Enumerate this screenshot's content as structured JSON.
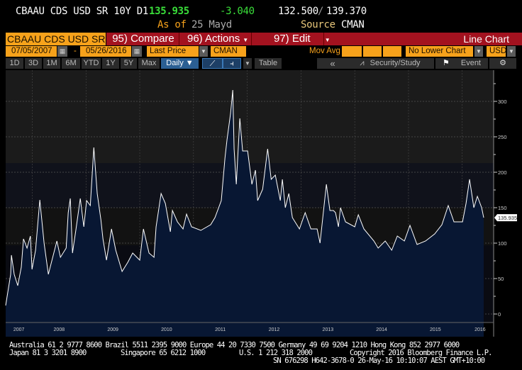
{
  "header": {
    "ticker": "CBAAU CDS USD SR 10Y D1",
    "last": "135.935",
    "change": "-3.040",
    "low": "132.500",
    "sep": "/",
    "high": "139.370",
    "asof_label": "As of",
    "asof_value": "25 Mayd",
    "source_label": "Source",
    "source_value": "CMAN"
  },
  "toolbar": {
    "security": "CBAAU CDS USD SR 1",
    "compare": "95) Compare",
    "actions": "96) Actions",
    "edit": "97) Edit",
    "chart_type": "Line Chart"
  },
  "fields": {
    "start_date": "07/05/2007",
    "dash": "-",
    "end_date": "05/26/2016",
    "field": "Last Price",
    "source": "CMAN",
    "mov_avg": "Mov Avg",
    "lower_chart": "No Lower Chart",
    "currency": "USD"
  },
  "ranges": [
    "1D",
    "3D",
    "1M",
    "6M",
    "YTD",
    "1Y",
    "5Y",
    "Max"
  ],
  "controls": {
    "period": "Daily ▼",
    "table": "Table",
    "back": "«",
    "security_study": "Security/Study",
    "event": "Event"
  },
  "colors": {
    "line": "#ffffff",
    "fill": "#12304f",
    "up_down": "#3adf3a",
    "accent": "#f7a21b",
    "bar": "#a3121f"
  },
  "chart_data": {
    "type": "area",
    "ylim": [
      0,
      330
    ],
    "yticks": [
      0,
      50,
      100,
      150,
      200,
      250,
      300
    ],
    "xlim": [
      "2007-07-05",
      "2016-05-26"
    ],
    "xtick_labels": [
      "2007",
      "2008",
      "2009",
      "2010",
      "2011",
      "2012",
      "2013",
      "2014",
      "2015",
      "2016"
    ],
    "last_value_label": "135.935",
    "grid": true,
    "points": [
      [
        "2007-07-05",
        12
      ],
      [
        "2007-08-08",
        56
      ],
      [
        "2007-08-13",
        83
      ],
      [
        "2007-09-01",
        56
      ],
      [
        "2007-09-25",
        40
      ],
      [
        "2007-10-19",
        66
      ],
      [
        "2007-11-03",
        106
      ],
      [
        "2007-11-27",
        93
      ],
      [
        "2007-12-20",
        110
      ],
      [
        "2007-12-31",
        63
      ],
      [
        "2008-01-24",
        90
      ],
      [
        "2008-02-22",
        161
      ],
      [
        "2008-03-22",
        100
      ],
      [
        "2008-04-20",
        56
      ],
      [
        "2008-06-17",
        103
      ],
      [
        "2008-07-11",
        80
      ],
      [
        "2008-08-19",
        93
      ],
      [
        "2008-09-02",
        143
      ],
      [
        "2008-09-16",
        163
      ],
      [
        "2008-10-01",
        86
      ],
      [
        "2008-10-25",
        120
      ],
      [
        "2008-11-23",
        163
      ],
      [
        "2008-12-17",
        123
      ],
      [
        "2009-01-05",
        160
      ],
      [
        "2009-01-30",
        153
      ],
      [
        "2009-02-23",
        235
      ],
      [
        "2009-03-18",
        170
      ],
      [
        "2009-04-12",
        133
      ],
      [
        "2009-04-26",
        106
      ],
      [
        "2009-05-20",
        76
      ],
      [
        "2009-06-23",
        120
      ],
      [
        "2009-07-22",
        90
      ],
      [
        "2009-09-03",
        60
      ],
      [
        "2009-10-12",
        73
      ],
      [
        "2009-11-14",
        86
      ],
      [
        "2010-01-01",
        76
      ],
      [
        "2010-01-26",
        120
      ],
      [
        "2010-03-05",
        86
      ],
      [
        "2010-04-08",
        80
      ],
      [
        "2010-04-22",
        123
      ],
      [
        "2010-05-26",
        170
      ],
      [
        "2010-06-24",
        156
      ],
      [
        "2010-07-28",
        116
      ],
      [
        "2010-08-11",
        146
      ],
      [
        "2010-09-14",
        130
      ],
      [
        "2010-10-22",
        120
      ],
      [
        "2010-11-15",
        141
      ],
      [
        "2010-12-19",
        123
      ],
      [
        "2011-02-20",
        118
      ],
      [
        "2011-04-28",
        126
      ],
      [
        "2011-05-27",
        136
      ],
      [
        "2011-07-09",
        160
      ],
      [
        "2011-08-03",
        220
      ],
      [
        "2011-08-17",
        246
      ],
      [
        "2011-09-10",
        283
      ],
      [
        "2011-09-25",
        316
      ],
      [
        "2011-10-04",
        233
      ],
      [
        "2011-10-19",
        183
      ],
      [
        "2011-11-12",
        276
      ],
      [
        "2011-12-01",
        230
      ],
      [
        "2012-01-04",
        230
      ],
      [
        "2012-02-02",
        183
      ],
      [
        "2012-02-26",
        203
      ],
      [
        "2012-03-12",
        160
      ],
      [
        "2012-04-15",
        176
      ],
      [
        "2012-05-19",
        233
      ],
      [
        "2012-06-12",
        190
      ],
      [
        "2012-07-10",
        196
      ],
      [
        "2012-08-13",
        160
      ],
      [
        "2012-08-27",
        190
      ],
      [
        "2012-09-16",
        150
      ],
      [
        "2012-10-10",
        170
      ],
      [
        "2012-11-03",
        136
      ],
      [
        "2012-12-21",
        120
      ],
      [
        "2013-01-29",
        143
      ],
      [
        "2013-03-09",
        120
      ],
      [
        "2013-04-20",
        120
      ],
      [
        "2013-05-10",
        100
      ],
      [
        "2013-06-22",
        183
      ],
      [
        "2013-07-16",
        146
      ],
      [
        "2013-08-09",
        146
      ],
      [
        "2013-08-23",
        143
      ],
      [
        "2013-09-12",
        123
      ],
      [
        "2013-09-26",
        150
      ],
      [
        "2013-10-30",
        130
      ],
      [
        "2014-01-01",
        123
      ],
      [
        "2014-01-25",
        140
      ],
      [
        "2014-03-04",
        120
      ],
      [
        "2014-05-11",
        103
      ],
      [
        "2014-06-09",
        93
      ],
      [
        "2014-07-27",
        103
      ],
      [
        "2014-09-09",
        90
      ],
      [
        "2014-10-17",
        110
      ],
      [
        "2014-12-04",
        103
      ],
      [
        "2015-01-11",
        125
      ],
      [
        "2015-02-28",
        98
      ],
      [
        "2015-04-27",
        103
      ],
      [
        "2015-06-28",
        113
      ],
      [
        "2015-08-16",
        126
      ],
      [
        "2015-09-28",
        153
      ],
      [
        "2015-11-06",
        130
      ],
      [
        "2016-01-03",
        130
      ],
      [
        "2016-01-27",
        156
      ],
      [
        "2016-02-20",
        190
      ],
      [
        "2016-03-20",
        150
      ],
      [
        "2016-04-13",
        166
      ],
      [
        "2016-05-12",
        150
      ],
      [
        "2016-05-26",
        135.935
      ]
    ]
  },
  "footer": {
    "line1": "Australia 61 2 9777 8600 Brazil 5511 2395 9000 Europe 44 20 7330 7500 Germany 49 69 9204 1210 Hong Kong 852 2977 6000",
    "line2a": "Japan 81 3 3201 8900",
    "line2b": "Singapore 65 6212 1000",
    "line2c": "U.S. 1 212 318 2000",
    "line2d": "Copyright 2016 Bloomberg Finance L.P.",
    "line3": "SN 676298 H642-3678-0 26-May-16 10:10:07 AEST GMT+10:00"
  }
}
